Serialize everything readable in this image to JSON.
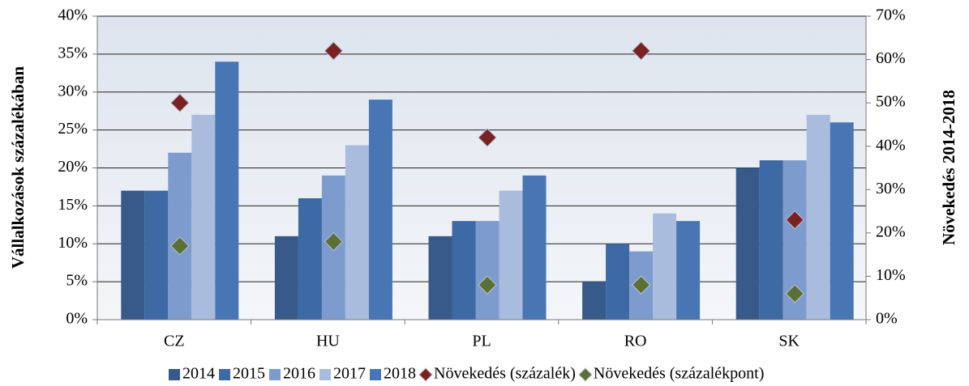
{
  "chart_data": {
    "type": "bar",
    "y_label": "Vállalkozások százalékában",
    "y2_label": "Növekedés 2014-2018",
    "categories": [
      "CZ",
      "HU",
      "PL",
      "RO",
      "SK"
    ],
    "series": [
      {
        "name": "2014",
        "color": "#375a8a",
        "values": [
          17,
          11,
          11,
          5,
          20
        ]
      },
      {
        "name": "2015",
        "color": "#3d69a4",
        "values": [
          17,
          16,
          13,
          10,
          21
        ]
      },
      {
        "name": "2016",
        "color": "#7d9ccd",
        "values": [
          22,
          19,
          13,
          9,
          21
        ]
      },
      {
        "name": "2017",
        "color": "#a9bcde",
        "values": [
          27,
          23,
          17,
          14,
          27
        ]
      },
      {
        "name": "2018",
        "color": "#4876b4",
        "values": [
          34,
          29,
          19,
          13,
          26
        ]
      },
      {
        "name": "Növekedés (százalék)",
        "type": "scatter",
        "axis": "y2",
        "color": "#7a2222",
        "values": [
          50,
          62,
          42,
          62,
          23
        ]
      },
      {
        "name": "Növekedés (százalékpont)",
        "type": "scatter",
        "axis": "y2",
        "color": "#5b7034",
        "values": [
          17,
          18,
          8,
          8,
          6
        ]
      }
    ],
    "ylim": [
      0,
      40
    ],
    "yticks": [
      {
        "value": 0,
        "label": "0%"
      },
      {
        "value": 5,
        "label": "5%"
      },
      {
        "value": 10,
        "label": "10%"
      },
      {
        "value": 15,
        "label": "15%"
      },
      {
        "value": 20,
        "label": "20%"
      },
      {
        "value": 25,
        "label": "25%"
      },
      {
        "value": 30,
        "label": "30%"
      },
      {
        "value": 35,
        "label": "35%"
      },
      {
        "value": 40,
        "label": "40%"
      }
    ],
    "y2lim": [
      0,
      70
    ],
    "y2ticks": [
      {
        "value": 0,
        "label": "0%"
      },
      {
        "value": 10,
        "label": "10%"
      },
      {
        "value": 20,
        "label": "20%"
      },
      {
        "value": 30,
        "label": "30%"
      },
      {
        "value": 40,
        "label": "40%"
      },
      {
        "value": 50,
        "label": "50%"
      },
      {
        "value": 60,
        "label": "60%"
      },
      {
        "value": 70,
        "label": "70%"
      }
    ],
    "grid": true,
    "legend": "bottom"
  }
}
